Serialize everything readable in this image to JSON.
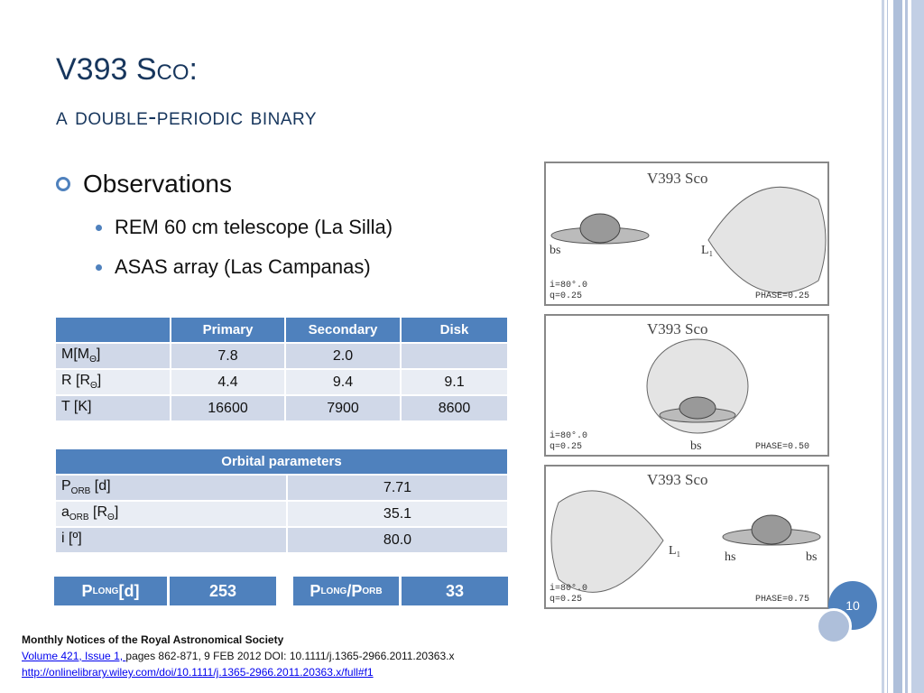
{
  "title": {
    "line1": "V393 Sco:",
    "line2": "a double-periodic binary"
  },
  "bullets": {
    "main": "Observations",
    "sub": [
      "REM 60 cm telescope (La Silla)",
      "ASAS array (Las Campanas)"
    ]
  },
  "table1": {
    "headers": [
      "",
      "Primary",
      "Secondary",
      "Disk"
    ],
    "rows": [
      {
        "label": "M[M",
        "sym": "Θ",
        "close": "]",
        "values": [
          "7.8",
          "2.0",
          ""
        ]
      },
      {
        "label": "R [R",
        "sym": "Θ",
        "close": "]",
        "values": [
          "4.4",
          "9.4",
          "9.1"
        ]
      },
      {
        "label": "T [K]",
        "sym": "",
        "close": "",
        "values": [
          "16600",
          "7900",
          "8600"
        ]
      }
    ]
  },
  "table2": {
    "header": "Orbital parameters",
    "rows": [
      {
        "main": "P",
        "sub": "ORB",
        "unit": " [d]",
        "sym": "",
        "close": "",
        "value": "7.71"
      },
      {
        "main": "a",
        "sub": "ORB",
        "unit": " [R",
        "sym": "Θ",
        "close": "]",
        "value": "35.1"
      },
      {
        "main": "i [º]",
        "sub": "",
        "unit": "",
        "sym": "",
        "close": "",
        "value": "80.0"
      }
    ]
  },
  "plong": {
    "p": "P",
    "sub": "LONG",
    "unit": " [d]",
    "value": "253"
  },
  "ratio": {
    "p1": "P",
    "sub1": "LONG",
    "slash": "/P",
    "sub2": "ORB",
    "value": "33"
  },
  "figures": [
    {
      "title": "V393  Sco",
      "i": "i=80°.0",
      "q": "q=0.25",
      "phase": "PHASE=0.25",
      "labels": [
        "bs",
        "L₁"
      ]
    },
    {
      "title": "V393  Sco",
      "i": "i=80°.0",
      "q": "q=0.25",
      "phase": "PHASE=0.50",
      "labels": [
        "bs"
      ]
    },
    {
      "title": "V393  Sco",
      "i": "i=80°.0",
      "q": "q=0.25",
      "phase": "PHASE=0.75",
      "labels": [
        "L₁",
        "hs",
        "bs"
      ]
    }
  ],
  "page_number": "10",
  "reference": {
    "journal": "Monthly Notices of the Royal Astronomical Society",
    "volume_link": "Volume 421, Issue 1, ",
    "pages": "pages 862-871, 9 FEB 2012 DOI: 10.1111/j.1365-2966.2011.20363.x",
    "url": "http://onlinelibrary.wiley.com/doi/10.1111/j.1365-2966.2011.20363.x/full#f1"
  },
  "colors": {
    "accent": "#4f81bd",
    "title": "#17365d",
    "row_odd": "#d0d8e8",
    "row_even": "#e9edf4"
  }
}
